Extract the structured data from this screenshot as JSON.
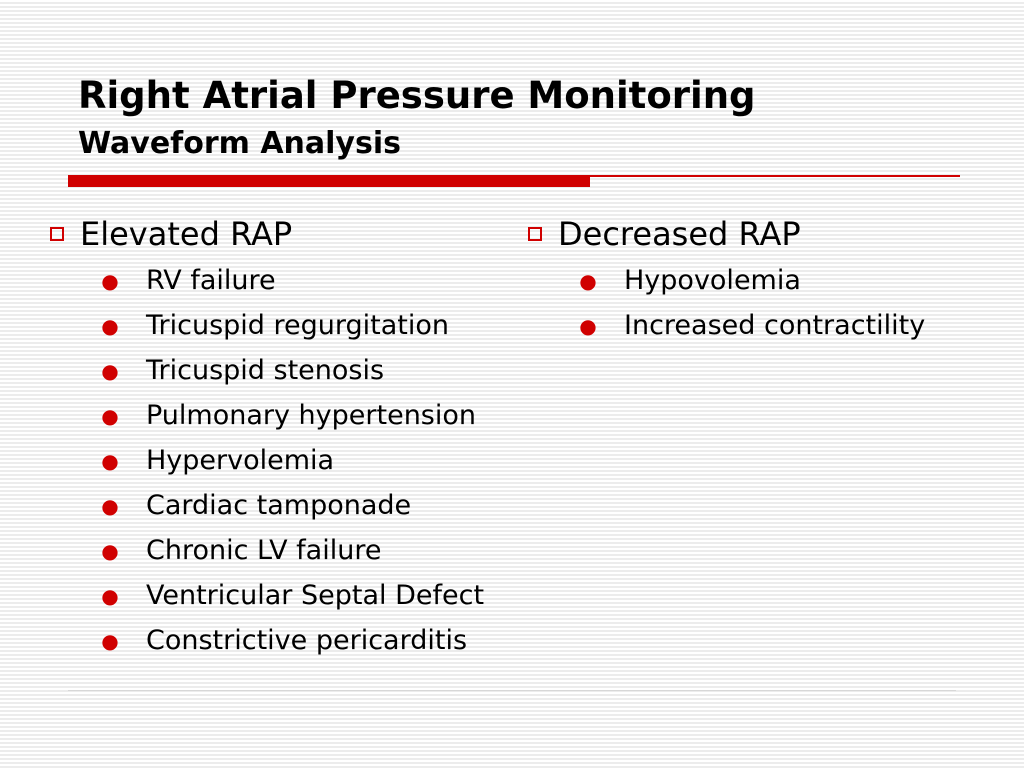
{
  "slide": {
    "title": "Right Atrial Pressure Monitoring",
    "subtitle": "Waveform Analysis",
    "accent_color": "#d00000",
    "columns": [
      {
        "heading": "Elevated RAP",
        "items": [
          "RV failure",
          "Tricuspid regurgitation",
          "Tricuspid stenosis",
          "Pulmonary hypertension",
          "Hypervolemia",
          "Cardiac tamponade",
          "Chronic LV failure",
          "Ventricular Septal Defect",
          "Constrictive pericarditis"
        ]
      },
      {
        "heading": "Decreased RAP",
        "items": [
          "Hypovolemia",
          "Increased contractility"
        ]
      }
    ]
  }
}
